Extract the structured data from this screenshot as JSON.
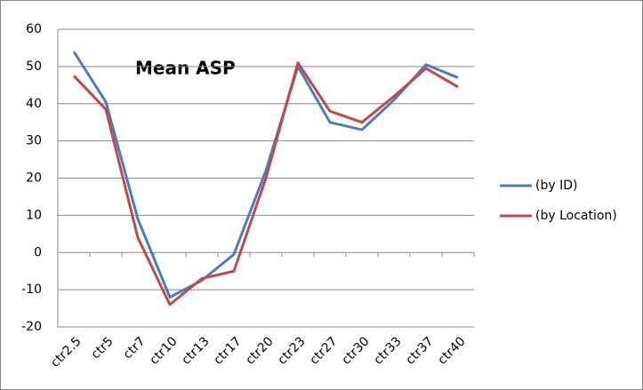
{
  "chart_data": {
    "type": "line",
    "title": "Mean ASP",
    "categories": [
      "ctr2.5",
      "ctr5",
      "ctr7",
      "ctr10",
      "ctr13",
      "ctr17",
      "ctr20",
      "ctr23",
      "ctr27",
      "ctr30",
      "ctr33",
      "ctr37",
      "ctr40"
    ],
    "series": [
      {
        "name": "(by ID)",
        "color": "#4a7ebb",
        "values": [
          54,
          40.5,
          9,
          -12,
          -7.5,
          -0.5,
          22,
          50,
          35,
          33,
          41,
          50.5,
          47
        ]
      },
      {
        "name": "(by Location)",
        "color": "#be4b48",
        "values": [
          47.5,
          38.5,
          4,
          -14,
          -7,
          -5,
          20,
          51,
          38,
          35,
          42,
          49.5,
          44.5
        ]
      }
    ],
    "ylim": [
      -20,
      60
    ],
    "yticks": [
      -20,
      -10,
      0,
      10,
      20,
      30,
      40,
      50,
      60
    ],
    "grid": true,
    "legend": "right"
  }
}
